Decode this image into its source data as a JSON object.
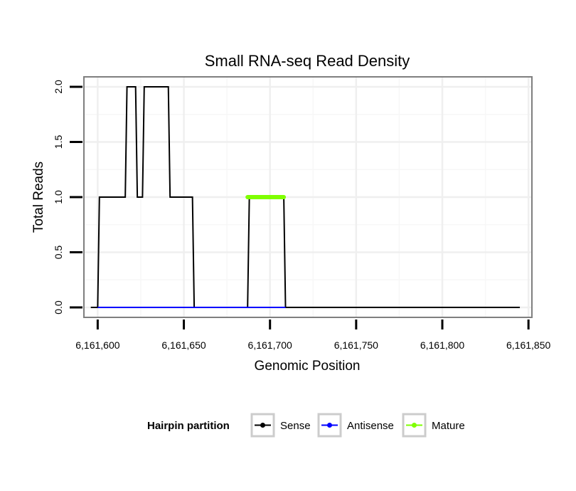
{
  "chart_data": {
    "type": "line",
    "title": "Small RNA-seq Read Density",
    "xlabel": "Genomic Position",
    "ylabel": "Total Reads",
    "xlim": [
      6161592,
      6161852
    ],
    "ylim": [
      -0.09,
      2.09
    ],
    "x_ticks": [
      6161600,
      6161650,
      6161700,
      6161750,
      6161800,
      6161850
    ],
    "x_tick_labels": [
      "6,161,600",
      "6,161,650",
      "6,161,700",
      "6,161,750",
      "6,161,800",
      "6,161,850"
    ],
    "y_ticks": [
      0,
      0.5,
      1,
      1.5,
      2
    ],
    "y_tick_labels": [
      "0.0",
      "0.5",
      "1.0",
      "1.5",
      "2.0"
    ],
    "grid": true,
    "legend": {
      "title": "Hairpin partition",
      "placement": "bottom",
      "entries": [
        {
          "label": "Sense",
          "color": "#000000"
        },
        {
          "label": "Antisense",
          "color": "#0000ff"
        },
        {
          "label": "Mature",
          "color": "#7fff00"
        }
      ]
    },
    "series": [
      {
        "name": "Sense",
        "color": "#000000",
        "x": [
          6161596,
          6161600,
          6161601,
          6161616,
          6161617,
          6161622,
          6161623,
          6161626,
          6161627,
          6161641,
          6161642,
          6161655,
          6161656,
          6161687,
          6161688,
          6161708,
          6161709,
          6161845
        ],
        "y": [
          0,
          0,
          1,
          1,
          2,
          2,
          1,
          1,
          2,
          2,
          1,
          1,
          0,
          0,
          1,
          1,
          0,
          0
        ]
      },
      {
        "name": "Antisense",
        "color": "#0000ff",
        "x": [
          6161600,
          6161709
        ],
        "y": [
          0,
          0
        ]
      },
      {
        "name": "Mature",
        "color": "#7fff00",
        "x": [
          6161687,
          6161708
        ],
        "y": [
          1,
          1
        ]
      }
    ]
  }
}
